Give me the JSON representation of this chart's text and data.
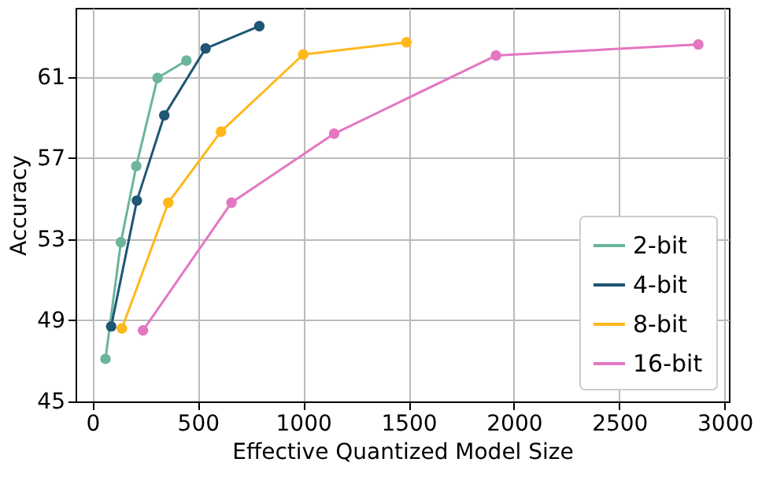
{
  "chart_data": {
    "type": "line",
    "xlabel": "Effective Quantized Model Size",
    "ylabel": "Accuracy",
    "xlim": [
      -80,
      3020
    ],
    "xticks": [
      0,
      500,
      1000,
      1500,
      2000,
      2500,
      3000
    ],
    "ylim": [
      45,
      64.4
    ],
    "yticks": [
      45,
      49,
      53,
      57,
      61
    ],
    "grid": true,
    "legend": "bottom right",
    "marker": "circle",
    "line_style": "solid",
    "series": [
      {
        "name": "2-bit",
        "color": "#6bb59b",
        "x": [
          62,
          135,
          208,
          309,
          446
        ],
        "values": [
          47.1,
          52.85,
          56.6,
          60.95,
          61.8
        ]
      },
      {
        "name": "4-bit",
        "color": "#1f5673",
        "x": [
          89,
          211,
          341,
          537,
          792
        ],
        "values": [
          48.7,
          54.9,
          59.1,
          62.4,
          63.5
        ]
      },
      {
        "name": "8-bit",
        "color": "#ffb81c",
        "x": [
          140,
          360,
          610,
          1000,
          1490
        ],
        "values": [
          48.6,
          54.8,
          58.3,
          62.1,
          62.7
        ]
      },
      {
        "name": "16-bit",
        "color": "#e377c2",
        "x": [
          240,
          660,
          1147,
          1915,
          2875
        ],
        "values": [
          48.5,
          54.8,
          58.2,
          62.05,
          62.6
        ]
      }
    ]
  }
}
